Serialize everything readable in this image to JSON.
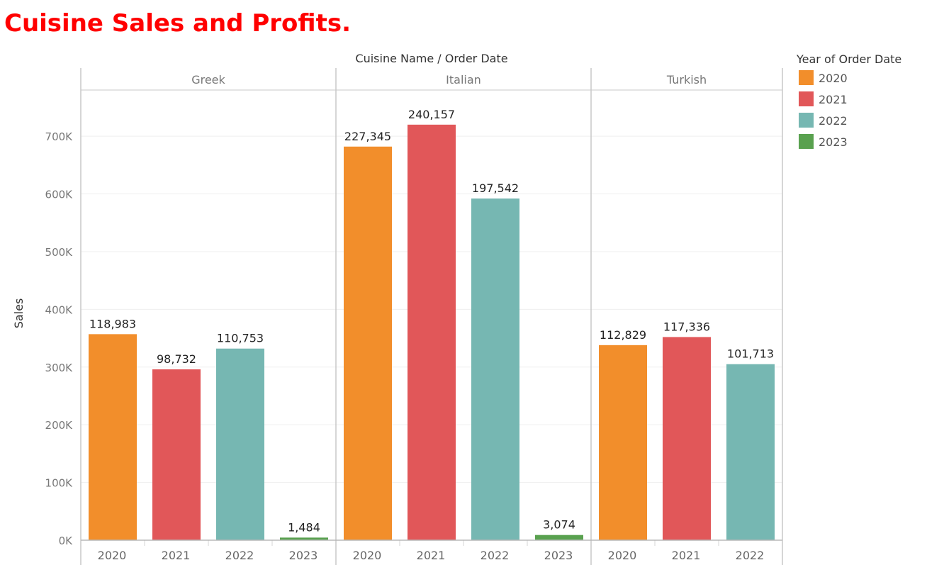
{
  "chart_data": {
    "type": "bar",
    "title": "Cuisine Sales and Profits.",
    "column_header": "Cuisine Name  /  Order Date",
    "ylabel": "Sales",
    "ylim": [
      0,
      780000
    ],
    "yticks": [
      {
        "value": 0,
        "label": "0K"
      },
      {
        "value": 100000,
        "label": "100K"
      },
      {
        "value": 200000,
        "label": "200K"
      },
      {
        "value": 300000,
        "label": "300K"
      },
      {
        "value": 400000,
        "label": "400K"
      },
      {
        "value": 500000,
        "label": "500K"
      },
      {
        "value": 600000,
        "label": "600K"
      },
      {
        "value": 700000,
        "label": "700K"
      }
    ],
    "grid": true,
    "legend": {
      "title": "Year of Order Date",
      "placement": "top-right",
      "items": [
        {
          "label": "2020",
          "color": "#f28e2b"
        },
        {
          "label": "2021",
          "color": "#e15759"
        },
        {
          "label": "2022",
          "color": "#76b7b2"
        },
        {
          "label": "2023",
          "color": "#59a14f"
        }
      ]
    },
    "panes": [
      {
        "name": "Greek",
        "bars": [
          {
            "year": "2020",
            "value": 357000,
            "label": "118,983"
          },
          {
            "year": "2021",
            "value": 296000,
            "label": "98,732"
          },
          {
            "year": "2022",
            "value": 332000,
            "label": "110,753"
          },
          {
            "year": "2023",
            "value": 4500,
            "label": "1,484"
          }
        ]
      },
      {
        "name": "Italian",
        "bars": [
          {
            "year": "2020",
            "value": 682000,
            "label": "227,345"
          },
          {
            "year": "2021",
            "value": 720000,
            "label": "240,157"
          },
          {
            "year": "2022",
            "value": 592000,
            "label": "197,542"
          },
          {
            "year": "2023",
            "value": 9000,
            "label": "3,074"
          }
        ]
      },
      {
        "name": "Turkish",
        "bars": [
          {
            "year": "2020",
            "value": 338000,
            "label": "112,829"
          },
          {
            "year": "2021",
            "value": 352000,
            "label": "117,336"
          },
          {
            "year": "2022",
            "value": 305000,
            "label": "101,713"
          }
        ]
      }
    ]
  }
}
